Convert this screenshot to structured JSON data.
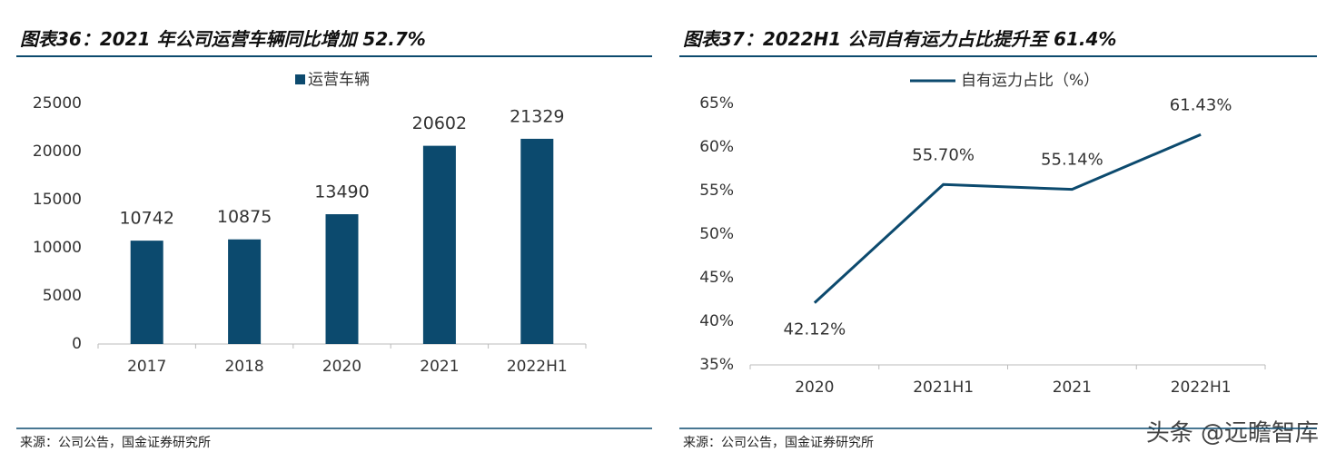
{
  "chart_data": [
    {
      "type": "bar",
      "title": "图表36：2021 年公司运营车辆同比增加 52.7%",
      "source": "来源：公司公告，国金证券研究所",
      "categories": [
        "2017",
        "2018",
        "2020",
        "2021",
        "2022H1"
      ],
      "series": [
        {
          "name": "运营车辆",
          "color": "#0c4a6e",
          "values": [
            10742,
            10875,
            13490,
            20602,
            21329
          ]
        }
      ],
      "ylim": [
        0,
        25000
      ],
      "yticks": [
        0,
        5000,
        10000,
        15000,
        20000,
        25000
      ]
    },
    {
      "type": "line",
      "title": "图表37：2022H1 公司自有运力占比提升至 61.4%",
      "source": "来源：公司公告，国金证券研究所",
      "categories": [
        "2020",
        "2021H1",
        "2021",
        "2022H1"
      ],
      "series": [
        {
          "name": "自有运力占比（%）",
          "color": "#0c4a6e",
          "values": [
            42.12,
            55.7,
            55.14,
            61.43
          ],
          "value_labels": [
            "42.12%",
            "55.70%",
            "55.14%",
            "61.43%"
          ]
        }
      ],
      "ylim": [
        35,
        65
      ],
      "yticks": [
        {
          "value": 35,
          "label": "35%"
        },
        {
          "value": 40,
          "label": "40%"
        },
        {
          "value": 45,
          "label": "45%"
        },
        {
          "value": 50,
          "label": "50%"
        },
        {
          "value": 55,
          "label": "55%"
        },
        {
          "value": 60,
          "label": "60%"
        },
        {
          "value": 65,
          "label": "65%"
        }
      ]
    }
  ],
  "watermark": "头条 @远瞻智库"
}
